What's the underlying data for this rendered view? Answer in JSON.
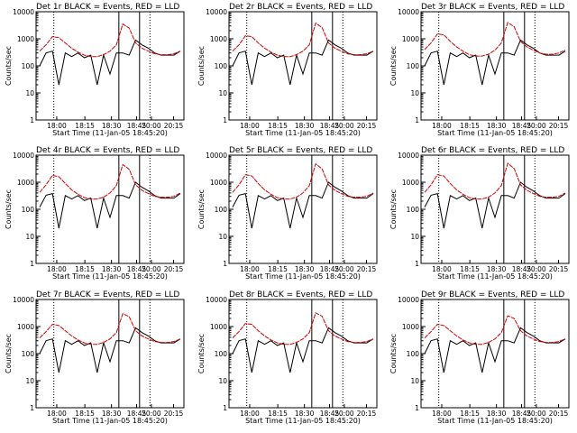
{
  "chart_data": [
    {
      "type": "line",
      "title": "Det 1r BLACK = Events, RED = LLD",
      "xlabel": "Start Time (11-Jan-05 18:45:20)",
      "ylabel": "Counts/sec",
      "yscale": "log",
      "ylim": [
        1,
        10000
      ],
      "x_ticks": [
        "18:00",
        "18:15",
        "18:30",
        "18:45",
        "20:00",
        "20:15"
      ],
      "y_ticks": [
        "1",
        "10",
        "100",
        "1000",
        "10000"
      ],
      "series": [
        {
          "name": "Events",
          "color": "#000000",
          "values": [
            100,
            300,
            350,
            20,
            300,
            220,
            300,
            200,
            250,
            20,
            250,
            50,
            300,
            300,
            250,
            900,
            600,
            450,
            300,
            250,
            250,
            250,
            350
          ]
        },
        {
          "name": "LLD",
          "color": "#d40000",
          "values": [
            350,
            600,
            1200,
            1100,
            700,
            450,
            320,
            250,
            220,
            220,
            260,
            350,
            600,
            3500,
            2500,
            700,
            450,
            350,
            280,
            260,
            260,
            280,
            350
          ]
        }
      ]
    },
    {
      "type": "line",
      "title": "Det 2r BLACK = Events, RED = LLD",
      "xlabel": "Start Time (11-Jan-05 18:45:20)",
      "ylabel": "Counts/sec",
      "yscale": "log",
      "ylim": [
        1,
        10000
      ],
      "x_ticks": [
        "18:00",
        "18:15",
        "18:30",
        "18:45",
        "20:00",
        "20:15"
      ],
      "y_ticks": [
        "1",
        "10",
        "100",
        "1000",
        "10000"
      ],
      "series": [
        {
          "name": "Events",
          "color": "#000000",
          "values": [
            100,
            300,
            350,
            20,
            300,
            220,
            300,
            200,
            250,
            20,
            250,
            50,
            300,
            300,
            250,
            900,
            600,
            450,
            300,
            250,
            250,
            250,
            350
          ]
        },
        {
          "name": "LLD",
          "color": "#d40000",
          "values": [
            350,
            600,
            1300,
            1200,
            700,
            450,
            320,
            250,
            220,
            220,
            260,
            350,
            600,
            3800,
            2600,
            700,
            450,
            350,
            280,
            260,
            260,
            280,
            350
          ]
        }
      ]
    },
    {
      "type": "line",
      "title": "Det 3r BLACK = Events, RED = LLD",
      "xlabel": "Start Time (11-Jan-05 18:45:20)",
      "ylabel": "Counts/sec",
      "yscale": "log",
      "ylim": [
        1,
        10000
      ],
      "x_ticks": [
        "18:00",
        "18:15",
        "18:30",
        "18:45",
        "20:00",
        "20:15"
      ],
      "y_ticks": [
        "1",
        "10",
        "100",
        "1000",
        "10000"
      ],
      "series": [
        {
          "name": "Events",
          "color": "#000000",
          "values": [
            100,
            300,
            350,
            20,
            300,
            220,
            300,
            200,
            250,
            20,
            250,
            50,
            300,
            300,
            250,
            900,
            600,
            450,
            300,
            250,
            250,
            250,
            350
          ]
        },
        {
          "name": "LLD",
          "color": "#d40000",
          "values": [
            400,
            700,
            1500,
            1400,
            800,
            500,
            350,
            260,
            230,
            230,
            270,
            380,
            700,
            4000,
            2800,
            800,
            500,
            380,
            300,
            270,
            270,
            300,
            380
          ]
        }
      ]
    },
    {
      "type": "line",
      "title": "Det 4r BLACK = Events, RED = LLD",
      "xlabel": "Start Time (11-Jan-05 18:45:20)",
      "ylabel": "Counts/sec",
      "yscale": "log",
      "ylim": [
        1,
        10000
      ],
      "x_ticks": [
        "18:00",
        "18:15",
        "18:30",
        "18:45",
        "20:00",
        "20:15"
      ],
      "y_ticks": [
        "1",
        "10",
        "100",
        "1000",
        "10000"
      ],
      "series": [
        {
          "name": "Events",
          "color": "#000000",
          "values": [
            120,
            330,
            380,
            20,
            320,
            240,
            320,
            210,
            260,
            20,
            260,
            50,
            320,
            320,
            260,
            1000,
            650,
            480,
            320,
            260,
            260,
            260,
            380
          ]
        },
        {
          "name": "LLD",
          "color": "#d40000",
          "values": [
            420,
            800,
            1800,
            1600,
            900,
            520,
            360,
            270,
            240,
            240,
            280,
            400,
            750,
            4500,
            3000,
            800,
            500,
            380,
            300,
            280,
            280,
            300,
            400
          ]
        }
      ]
    },
    {
      "type": "line",
      "title": "Det 5r BLACK = Events, RED = LLD",
      "xlabel": "Start Time (11-Jan-05 18:45:20)",
      "ylabel": "Counts/sec",
      "yscale": "log",
      "ylim": [
        1,
        10000
      ],
      "x_ticks": [
        "18:00",
        "18:15",
        "18:30",
        "18:45",
        "20:00",
        "20:15"
      ],
      "y_ticks": [
        "1",
        "10",
        "100",
        "1000",
        "10000"
      ],
      "series": [
        {
          "name": "Events",
          "color": "#000000",
          "values": [
            120,
            330,
            380,
            20,
            320,
            240,
            320,
            210,
            260,
            20,
            260,
            50,
            320,
            320,
            260,
            1000,
            650,
            480,
            320,
            260,
            260,
            260,
            380
          ]
        },
        {
          "name": "LLD",
          "color": "#d40000",
          "values": [
            420,
            800,
            1900,
            1700,
            900,
            520,
            360,
            270,
            240,
            240,
            280,
            400,
            750,
            4800,
            3100,
            800,
            500,
            380,
            300,
            280,
            280,
            300,
            400
          ]
        }
      ]
    },
    {
      "type": "line",
      "title": "Det 6r BLACK = Events, RED = LLD",
      "xlabel": "Start Time (11-Jan-05 18:45:20)",
      "ylabel": "Counts/sec",
      "yscale": "log",
      "ylim": [
        1,
        10000
      ],
      "x_ticks": [
        "18:00",
        "18:15",
        "18:30",
        "18:45",
        "20:00",
        "20:15"
      ],
      "y_ticks": [
        "1",
        "10",
        "100",
        "1000",
        "10000"
      ],
      "series": [
        {
          "name": "Events",
          "color": "#000000",
          "values": [
            120,
            330,
            380,
            20,
            320,
            240,
            320,
            210,
            260,
            20,
            260,
            50,
            320,
            320,
            260,
            1000,
            650,
            480,
            320,
            260,
            260,
            260,
            380
          ]
        },
        {
          "name": "LLD",
          "color": "#d40000",
          "values": [
            420,
            800,
            1900,
            1700,
            900,
            520,
            360,
            270,
            240,
            240,
            280,
            400,
            750,
            5000,
            3200,
            800,
            500,
            380,
            300,
            280,
            280,
            300,
            400
          ]
        }
      ]
    },
    {
      "type": "line",
      "title": "Det 7r BLACK = Events, RED = LLD",
      "xlabel": "Start Time (11-Jan-05 18:45:20)",
      "ylabel": "Counts/sec",
      "yscale": "log",
      "ylim": [
        1,
        10000
      ],
      "x_ticks": [
        "18:00",
        "18:15",
        "18:30",
        "18:45",
        "20:00",
        "20:15"
      ],
      "y_ticks": [
        "1",
        "10",
        "100",
        "1000",
        "10000"
      ],
      "series": [
        {
          "name": "Events",
          "color": "#000000",
          "values": [
            100,
            300,
            350,
            20,
            300,
            220,
            300,
            200,
            250,
            20,
            250,
            50,
            300,
            300,
            250,
            900,
            600,
            450,
            300,
            250,
            250,
            250,
            350
          ]
        },
        {
          "name": "LLD",
          "color": "#d40000",
          "values": [
            380,
            650,
            1200,
            1100,
            700,
            450,
            320,
            250,
            220,
            220,
            260,
            350,
            600,
            3000,
            2300,
            700,
            450,
            350,
            280,
            260,
            260,
            280,
            350
          ]
        }
      ]
    },
    {
      "type": "line",
      "title": "Det 8r BLACK = Events, RED = LLD",
      "xlabel": "Start Time (11-Jan-05 18:45:20)",
      "ylabel": "Counts/sec",
      "yscale": "log",
      "ylim": [
        1,
        10000
      ],
      "x_ticks": [
        "18:00",
        "18:15",
        "18:30",
        "18:45",
        "20:00",
        "20:15"
      ],
      "y_ticks": [
        "1",
        "10",
        "100",
        "1000",
        "10000"
      ],
      "series": [
        {
          "name": "Events",
          "color": "#000000",
          "values": [
            100,
            300,
            350,
            20,
            300,
            220,
            300,
            200,
            250,
            20,
            250,
            50,
            300,
            300,
            250,
            900,
            600,
            450,
            300,
            250,
            250,
            250,
            350
          ]
        },
        {
          "name": "LLD",
          "color": "#d40000",
          "values": [
            380,
            650,
            1300,
            1200,
            700,
            450,
            320,
            250,
            220,
            220,
            260,
            350,
            600,
            3200,
            2400,
            700,
            450,
            350,
            280,
            260,
            260,
            280,
            350
          ]
        }
      ]
    },
    {
      "type": "line",
      "title": "Det 9r BLACK = Events, RED = LLD",
      "xlabel": "Start Time (11-Jan-05 18:45:20)",
      "ylabel": "Counts/sec",
      "yscale": "log",
      "ylim": [
        1,
        10000
      ],
      "x_ticks": [
        "18:00",
        "18:15",
        "18:30",
        "18:45",
        "20:00",
        "20:15"
      ],
      "y_ticks": [
        "1",
        "10",
        "100",
        "1000",
        "10000"
      ],
      "series": [
        {
          "name": "Events",
          "color": "#000000",
          "values": [
            100,
            300,
            350,
            20,
            300,
            220,
            300,
            200,
            250,
            20,
            250,
            50,
            300,
            300,
            250,
            900,
            600,
            450,
            300,
            250,
            250,
            250,
            350
          ]
        },
        {
          "name": "LLD",
          "color": "#d40000",
          "values": [
            380,
            650,
            1200,
            1100,
            700,
            450,
            320,
            250,
            220,
            220,
            260,
            350,
            600,
            2500,
            2000,
            700,
            450,
            350,
            280,
            260,
            260,
            280,
            350
          ]
        }
      ]
    }
  ]
}
